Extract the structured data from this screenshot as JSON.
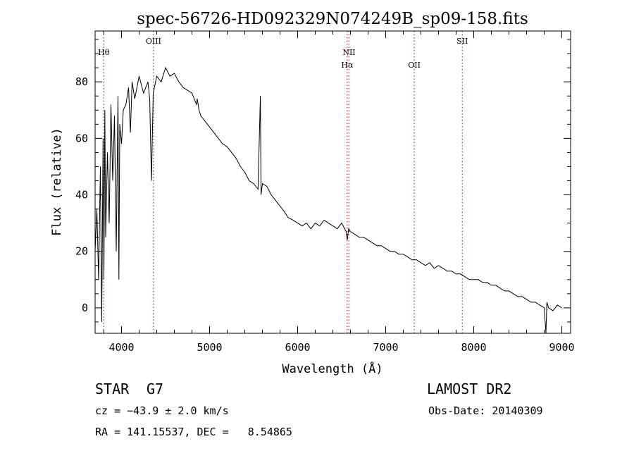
{
  "chart_data": {
    "type": "line",
    "title": "spec-56726-HD092329N074249B_sp09-158.fits",
    "xlabel": "Wavelength (Å)",
    "ylabel": "Flux (relative)",
    "xlim": [
      3700,
      9100
    ],
    "ylim": [
      -9,
      98
    ],
    "x_ticks": [
      4000,
      5000,
      6000,
      7000,
      8000,
      9000
    ],
    "y_ticks": [
      0,
      20,
      40,
      60,
      80
    ],
    "grid": false,
    "series": [
      {
        "x": [
          3700,
          3720,
          3740,
          3760,
          3775,
          3790,
          3800,
          3810,
          3820,
          3840,
          3860,
          3880,
          3900,
          3920,
          3940,
          3960,
          3970,
          3980,
          4000,
          4020,
          4050,
          4080,
          4101,
          4120,
          4150,
          4200,
          4250,
          4300,
          4320,
          4340,
          4360,
          4400,
          4450,
          4500,
          4550,
          4600,
          4650,
          4700,
          4750,
          4800,
          4850,
          4860,
          4880,
          4900,
          4950,
          5000,
          5050,
          5100,
          5150,
          5200,
          5250,
          5300,
          5350,
          5400,
          5450,
          5500,
          5550,
          5577,
          5585,
          5600,
          5650,
          5700,
          5750,
          5800,
          5850,
          5890,
          5950,
          6000,
          6050,
          6100,
          6150,
          6200,
          6250,
          6300,
          6350,
          6400,
          6450,
          6500,
          6550,
          6563,
          6580,
          6600,
          6650,
          6700,
          6750,
          6800,
          6850,
          6900,
          6950,
          7000,
          7050,
          7100,
          7150,
          7200,
          7250,
          7300,
          7350,
          7400,
          7450,
          7500,
          7550,
          7600,
          7650,
          7700,
          7750,
          7800,
          7850,
          7900,
          7950,
          8000,
          8050,
          8100,
          8150,
          8200,
          8250,
          8300,
          8350,
          8400,
          8450,
          8500,
          8550,
          8600,
          8650,
          8700,
          8750,
          8800,
          8820,
          8830,
          8850,
          8900,
          8950,
          9000
        ],
        "y": [
          20,
          35,
          10,
          50,
          -5,
          60,
          10,
          70,
          25,
          55,
          30,
          72,
          45,
          68,
          20,
          75,
          10,
          65,
          58,
          70,
          72,
          78,
          62,
          80,
          74,
          82,
          76,
          80,
          74,
          45,
          76,
          82,
          80,
          85,
          82,
          83,
          80,
          78,
          77,
          76,
          72,
          74,
          70,
          68,
          66,
          64,
          62,
          60,
          58,
          57,
          55,
          53,
          50,
          48,
          45,
          44,
          42,
          75,
          40,
          44,
          43,
          40,
          38,
          36,
          34,
          32,
          31,
          30,
          29,
          30,
          28,
          30,
          29,
          31,
          30,
          29,
          28,
          30,
          27,
          24,
          28,
          27,
          26,
          25,
          25,
          24,
          23,
          22,
          22,
          21,
          20,
          20,
          19,
          19,
          18,
          17,
          17,
          16,
          15,
          16,
          14,
          15,
          14,
          13,
          13,
          12,
          12,
          11,
          10,
          10,
          10,
          9,
          9,
          8,
          8,
          7,
          6,
          6,
          5,
          4,
          4,
          3,
          2,
          2,
          1,
          0,
          -9,
          2,
          0,
          -1,
          1,
          0
        ]
      }
    ],
    "spectral_lines": [
      {
        "label": "Hθ",
        "wavelength": 3798
      },
      {
        "label": "OIII",
        "wavelength": 4363
      },
      {
        "label": "NII",
        "wavelength": 6584
      },
      {
        "label": "Hα",
        "wavelength": 6563
      },
      {
        "label": "OII",
        "wavelength": 7325
      },
      {
        "label": "SII",
        "wavelength": 7870
      }
    ]
  },
  "info": {
    "class_label": "STAR",
    "subclass": "G7",
    "survey": "LAMOST DR2",
    "cz": "cz = −43.9 ± 2.0 km/s",
    "obs_date": "Obs-Date: 20140309",
    "coords": "RA = 141.15537, DEC =   8.54865"
  }
}
